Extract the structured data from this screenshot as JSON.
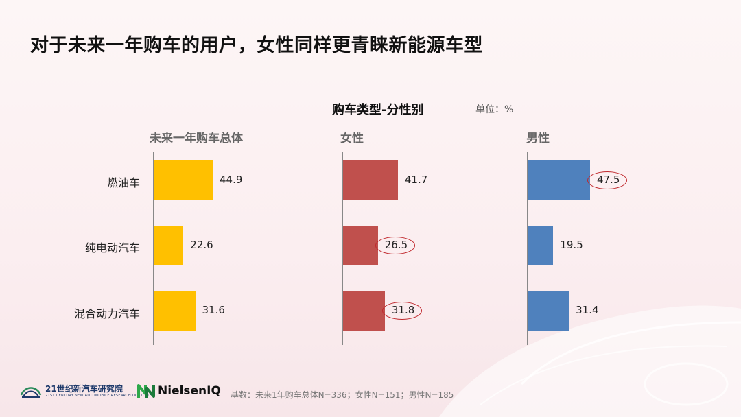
{
  "page": {
    "title": "对于未来一年购车的用户，女性同样更青睐新能源车型",
    "base_note": "基数：未来1年购车总体N=336；女性N=151；男性N=185"
  },
  "logos": {
    "institute_name": "21世纪新汽车研究院",
    "institute_sub": "21ST CENTURY NEW AUTOMOBILE RESEARCH INSTITUTE",
    "nielsen": "NielsenIQ"
  },
  "colors": {
    "total": "#FFC000",
    "female": "#C0504D",
    "male": "#4F81BD",
    "highlight": "#C0282D"
  },
  "chart_data": {
    "type": "bar",
    "orientation": "horizontal",
    "title": "购车类型-分性别",
    "unit": "单位：%",
    "categories": [
      "燃油车",
      "纯电动汽车",
      "混合动力汽车"
    ],
    "series": [
      {
        "name": "未来一年购车总体",
        "values": [
          44.9,
          22.6,
          31.6
        ],
        "color": "#FFC000",
        "highlight": []
      },
      {
        "name": "女性",
        "values": [
          41.7,
          26.5,
          31.8
        ],
        "color": "#C0504D",
        "highlight": [
          1,
          2
        ]
      },
      {
        "name": "男性",
        "values": [
          47.5,
          19.5,
          31.4
        ],
        "color": "#4F81BD",
        "highlight": [
          0
        ]
      }
    ],
    "xlim": [
      0,
      100
    ]
  }
}
